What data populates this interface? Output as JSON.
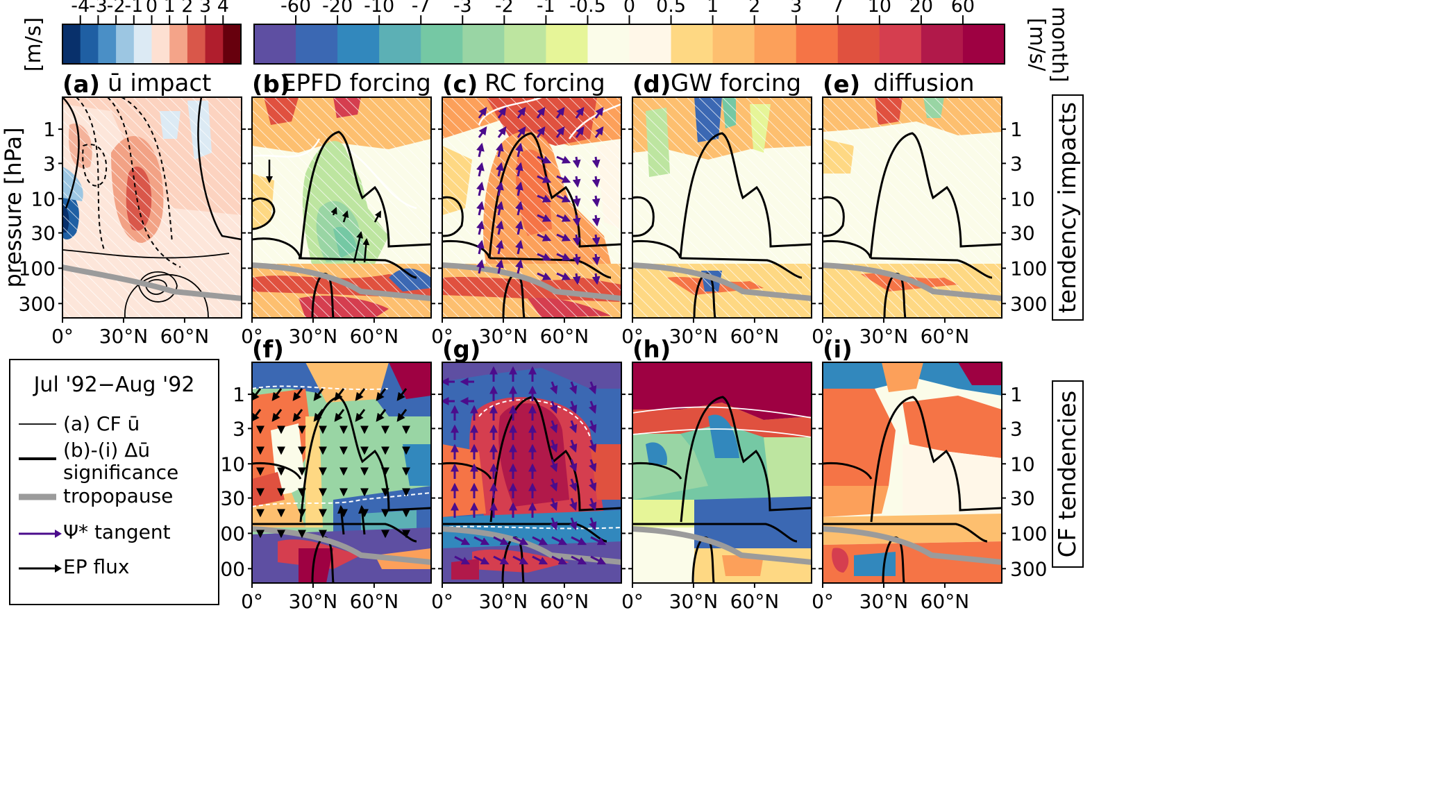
{
  "colorbars": {
    "left": {
      "unit": "[m/s]",
      "ticks": [
        "-4",
        "-3",
        "-2",
        "-1",
        "0",
        "1",
        "2",
        "3",
        "4"
      ],
      "colors": [
        "#08306b",
        "#1f5fa3",
        "#4a8fc6",
        "#9cc6e2",
        "#dceaf4",
        "#fde0d2",
        "#f4a489",
        "#d9574a",
        "#b01e2d",
        "#67000d"
      ]
    },
    "right": {
      "unit": "[m/s/ month]",
      "unit_line1": "[m/s/",
      "unit_line2": "month]",
      "ticks": [
        "-60",
        "-20",
        "-10",
        "-7",
        "-3",
        "-2",
        "-1",
        "-0.5",
        "0",
        "0.5",
        "1",
        "2",
        "3",
        "7",
        "10",
        "20",
        "60"
      ],
      "colors": [
        "#5e4fa2",
        "#3b68b3",
        "#3288bd",
        "#5cb0b5",
        "#75c8a4",
        "#99d5a4",
        "#bde5a0",
        "#e6f598",
        "#fbfce9",
        "#fff7e8",
        "#fed883",
        "#fdbf6f",
        "#fca05a",
        "#f57446",
        "#e0513f",
        "#d53e4f",
        "#b1194a",
        "#9e0142"
      ]
    }
  },
  "panels": [
    {
      "label": "(a)",
      "title": "ū impact",
      "row": "top",
      "col": 0
    },
    {
      "label": "(b)",
      "title": "EPFD forcing",
      "row": "top",
      "col": 1
    },
    {
      "label": "(c)",
      "title": "RC forcing",
      "row": "top",
      "col": 2
    },
    {
      "label": "(d)",
      "title": "GW forcing",
      "row": "top",
      "col": 3
    },
    {
      "label": "(e)",
      "title": "diffusion",
      "row": "top",
      "col": 4
    },
    {
      "label": "(f)",
      "title": "",
      "row": "bottom",
      "col": 1
    },
    {
      "label": "(g)",
      "title": "",
      "row": "bottom",
      "col": 2
    },
    {
      "label": "(h)",
      "title": "",
      "row": "bottom",
      "col": 3
    },
    {
      "label": "(i)",
      "title": "",
      "row": "bottom",
      "col": 4
    }
  ],
  "axes": {
    "ylabel": "pressure [hPa]",
    "yticks": [
      "1",
      "3",
      "10",
      "30",
      "100",
      "300"
    ],
    "xticks": [
      "0°",
      "30°N",
      "60°N"
    ]
  },
  "row_labels": {
    "top": "tendency impacts",
    "bottom": "CF tendencies"
  },
  "legend": {
    "title": "Jul '92−Aug '92",
    "items": [
      {
        "label": "(a) CF ū"
      },
      {
        "label": "(b)-(i) Δū",
        "label2": "significance"
      },
      {
        "label": "tropopause"
      },
      {
        "label": "Ψ* tangent"
      },
      {
        "label": "EP flux"
      }
    ]
  },
  "chart_data": {
    "type": "heatmap",
    "panels": [
      "(a)",
      "(b)",
      "(c)",
      "(d)",
      "(e)",
      "(f)",
      "(g)",
      "(h)",
      "(i)"
    ],
    "titles": [
      "ū impact",
      "EPFD forcing",
      "RC forcing",
      "GW forcing",
      "diffusion"
    ],
    "ylabel": "pressure [hPa]",
    "yticks": [
      1,
      3,
      10,
      30,
      100,
      300
    ],
    "ylog": true,
    "xticks": [
      "0°",
      "30°N",
      "60°N"
    ],
    "xlim": [
      0,
      90
    ],
    "colorbar_left_ticks": [
      -4,
      -3,
      -2,
      -1,
      0,
      1,
      2,
      3,
      4
    ],
    "colorbar_right_ticks": [
      -60,
      -20,
      -10,
      -7,
      -3,
      -2,
      -1,
      -0.5,
      0,
      0.5,
      1,
      2,
      3,
      7,
      10,
      20,
      60
    ],
    "period": "Jul '92−Aug '92"
  }
}
